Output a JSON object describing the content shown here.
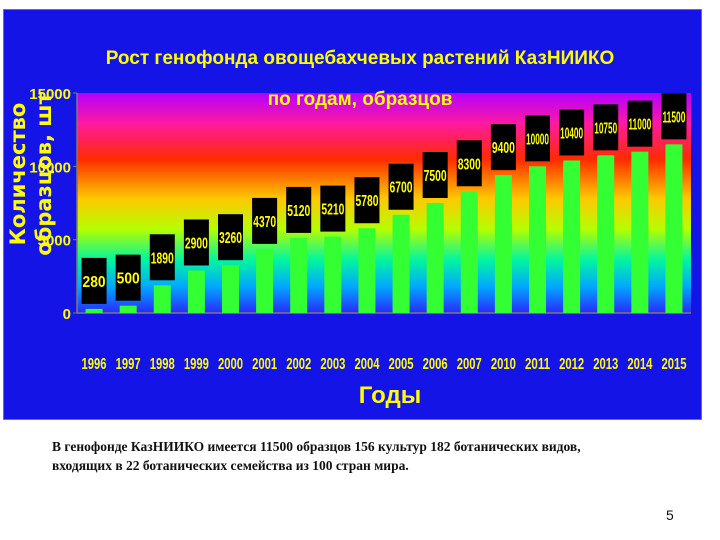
{
  "chart_data": {
    "type": "bar",
    "title_line1": "Рост генофонда овощебахчевых растений КазНИИКО",
    "title_line2": "по годам, образцов",
    "ylabel_line1": "Количество",
    "ylabel_line2": "образцов, шт",
    "xlabel": "Годы",
    "categories": [
      "1996",
      "1997",
      "1998",
      "1999",
      "2000",
      "2001",
      "2002",
      "2003",
      "2004",
      "2005",
      "2006",
      "2007",
      "2010",
      "2011",
      "2012",
      "2013",
      "2014",
      "2015"
    ],
    "values": [
      280,
      500,
      1890,
      2900,
      3260,
      4370,
      5120,
      5210,
      5780,
      6700,
      7500,
      8300,
      9400,
      10000,
      10400,
      10750,
      11000,
      11500
    ],
    "data_labels": [
      "280",
      "500",
      "1890",
      "2900",
      "3260",
      "4370",
      "5120",
      "5210",
      "5780",
      "6700",
      "7500",
      "8300",
      "9400",
      "10000",
      "10400",
      "10750",
      "11000",
      "11500"
    ],
    "yticks": [
      "0",
      "5000",
      "10000",
      "15000"
    ],
    "ytick_values": [
      0,
      5000,
      10000,
      15000
    ],
    "ylim": [
      0,
      15000
    ],
    "grid": false,
    "legend": "none",
    "colors": {
      "panel": "#1414e6",
      "bar": "#33ff33",
      "label_box": "#000000",
      "label_text": "#ffff00",
      "axis_text": "#ffff00",
      "title_text": "#ffff00",
      "axis_line": "#7a7a7a"
    }
  },
  "caption": {
    "line1": "В генофонде КазНИИКО имеется  11500 образцов 156 культур 182 ботанических видов,",
    "line2": "входящих в 22 ботанических семейства из 100 стран мира."
  },
  "slide_number": "5"
}
